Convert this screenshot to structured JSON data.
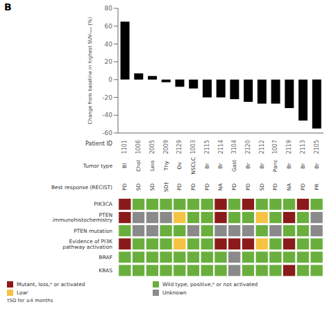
{
  "chart_data": {
    "type": "bar",
    "title": "B",
    "categories": [
      "1101",
      "1006",
      "2005",
      "2009",
      "2129",
      "1003",
      "2115",
      "2114",
      "3104",
      "2120",
      "2112",
      "1007",
      "2119",
      "2113",
      "2105"
    ],
    "values": [
      65,
      7,
      4,
      -3,
      -8,
      -10,
      -20,
      -20,
      -22,
      -25,
      -27,
      -27,
      -32,
      -46,
      -55
    ],
    "color": "#000000",
    "ylim": [
      -60,
      80
    ],
    "yticks": [
      -60,
      -40,
      -20,
      0,
      20,
      40,
      60,
      80
    ],
    "ylabel": "Change from baseline in highest SUVₘₐₓ (%)",
    "xlabel": "Patient ID",
    "text_rows": [
      {
        "label": "Tumor type",
        "values": [
          "Bl",
          "Chol",
          "Leio",
          "Thy",
          "Ov",
          "NSCLC",
          "Br",
          "Br",
          "Gast",
          "Br",
          "Br",
          "Panc",
          "Br",
          "Br",
          "Br"
        ]
      },
      {
        "label": "Best response (RECIST)",
        "values": [
          "PD",
          "SD",
          "SD",
          "SD†",
          "PD",
          "PD",
          "PD",
          "NA",
          "PD",
          "PD",
          "SD",
          "PD",
          "NA",
          "PD",
          "PR"
        ]
      }
    ],
    "heatmap": {
      "rows": [
        "PIK3CA",
        "PTEN immunohistochemistry",
        "PTEN mutation",
        "Evidence of PI3K pathway activation",
        "BRAF",
        "KRAS"
      ],
      "cells": [
        [
          "#8B1A1A",
          "#6AAF3D",
          "#6AAF3D",
          "#6AAF3D",
          "#6AAF3D",
          "#6AAF3D",
          "#6AAF3D",
          "#8B1A1A",
          "#6AAF3D",
          "#8B1A1A",
          "#6AAF3D",
          "#6AAF3D",
          "#6AAF3D",
          "#8B1A1A",
          "#6AAF3D"
        ],
        [
          "#8B1A1A",
          "#8A8A8A",
          "#8A8A8A",
          "#8A8A8A",
          "#F5C242",
          "#6AAF3D",
          "#6AAF3D",
          "#8B1A1A",
          "#6AAF3D",
          "#6AAF3D",
          "#F5C242",
          "#6AAF3D",
          "#8B1A1A",
          "#6AAF3D",
          "#8A8A8A"
        ],
        [
          "#6AAF3D",
          "#8A8A8A",
          "#8A8A8A",
          "#6AAF3D",
          "#6AAF3D",
          "#8A8A8A",
          "#6AAF3D",
          "#8A8A8A",
          "#8A8A8A",
          "#8A8A8A",
          "#6AAF3D",
          "#8A8A8A",
          "#6AAF3D",
          "#6AAF3D",
          "#8A8A8A"
        ],
        [
          "#8B1A1A",
          "#6AAF3D",
          "#6AAF3D",
          "#6AAF3D",
          "#F5C242",
          "#6AAF3D",
          "#6AAF3D",
          "#8B1A1A",
          "#8B1A1A",
          "#8B1A1A",
          "#F5C242",
          "#6AAF3D",
          "#8B1A1A",
          "#6AAF3D",
          "#6AAF3D"
        ],
        [
          "#6AAF3D",
          "#6AAF3D",
          "#6AAF3D",
          "#6AAF3D",
          "#6AAF3D",
          "#6AAF3D",
          "#6AAF3D",
          "#6AAF3D",
          "#8A8A8A",
          "#6AAF3D",
          "#6AAF3D",
          "#6AAF3D",
          "#6AAF3D",
          "#6AAF3D",
          "#6AAF3D"
        ],
        [
          "#6AAF3D",
          "#6AAF3D",
          "#6AAF3D",
          "#6AAF3D",
          "#6AAF3D",
          "#6AAF3D",
          "#6AAF3D",
          "#6AAF3D",
          "#8A8A8A",
          "#6AAF3D",
          "#6AAF3D",
          "#6AAF3D",
          "#8B1A1A",
          "#6AAF3D",
          "#6AAF3D"
        ]
      ],
      "keys": [
        {
          "label": "Mutant, loss,ᵃ or activated",
          "color": "#8B1A1A"
        },
        {
          "label": "Wild type, positive,ᵇ or not activated",
          "color": "#6AAF3D"
        },
        {
          "label": "Lowᶜ",
          "color": "#F5C242"
        },
        {
          "label": "Unknown",
          "color": "#8A8A8A"
        }
      ]
    },
    "annotations": [
      "†SD for ≥4 months"
    ]
  }
}
